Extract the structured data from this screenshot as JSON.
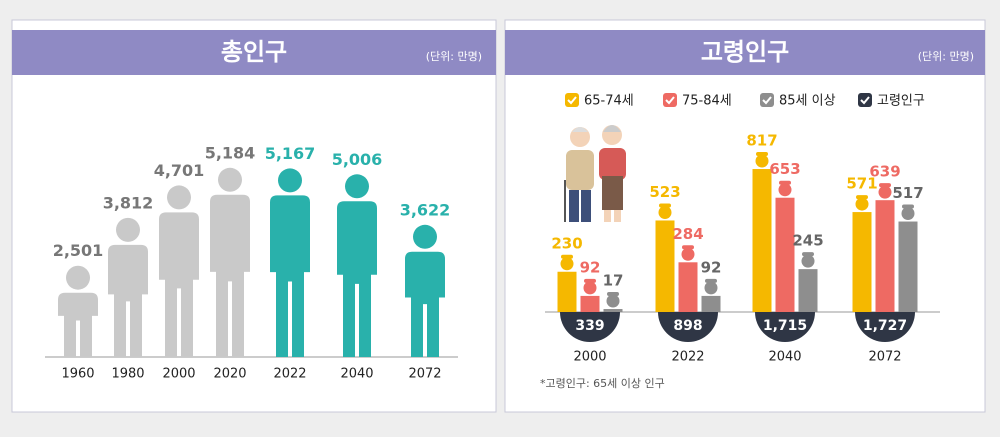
{
  "chart_data": [
    {
      "type": "pictogram",
      "title": "총인구",
      "unit": "(단위: 만명)",
      "categories": [
        "1960",
        "1980",
        "2000",
        "2020",
        "2022",
        "2040",
        "2072"
      ],
      "values": [
        2501,
        3812,
        4701,
        5184,
        5167,
        5006,
        3622
      ],
      "value_labels": [
        "2,501",
        "3,812",
        "4,701",
        "5,184",
        "5,167",
        "5,006",
        "3,622"
      ],
      "colors": [
        "#c9c9c9",
        "#c9c9c9",
        "#c9c9c9",
        "#c9c9c9",
        "#29b1ab",
        "#29b1ab",
        "#29b1ab"
      ]
    },
    {
      "type": "bar",
      "title": "고령인구",
      "unit": "(단위: 만명)",
      "categories": [
        "2000",
        "2022",
        "2040",
        "2072"
      ],
      "series": [
        {
          "name": "65-74세",
          "color": "#f5b800",
          "values": [
            230,
            523,
            817,
            571
          ]
        },
        {
          "name": "75-84세",
          "color": "#ee6a63",
          "values": [
            92,
            284,
            653,
            639
          ]
        },
        {
          "name": "85세 이상",
          "color": "#8e8e8e",
          "values": [
            17,
            92,
            245,
            517
          ]
        },
        {
          "name": "고령인구",
          "color": "#2f3645",
          "values": [
            339,
            898,
            1715,
            1727
          ],
          "value_labels": [
            "339",
            "898",
            "1,715",
            "1,727"
          ]
        }
      ],
      "note": "*고령인구: 65세 이상 인구"
    }
  ]
}
